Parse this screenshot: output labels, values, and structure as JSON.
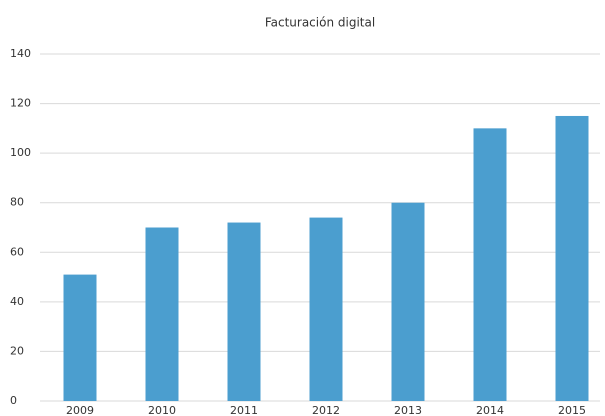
{
  "chart_data": {
    "type": "bar",
    "title": "Facturación digital",
    "categories": [
      "2009",
      "2010",
      "2011",
      "2012",
      "2013",
      "2014",
      "2015"
    ],
    "values": [
      51,
      70,
      72,
      74,
      80,
      110,
      115
    ],
    "color": "#4b9ecf",
    "ylim": [
      0,
      140
    ],
    "yticks": [
      0,
      20,
      40,
      60,
      80,
      100,
      120,
      140
    ],
    "grid": true
  }
}
